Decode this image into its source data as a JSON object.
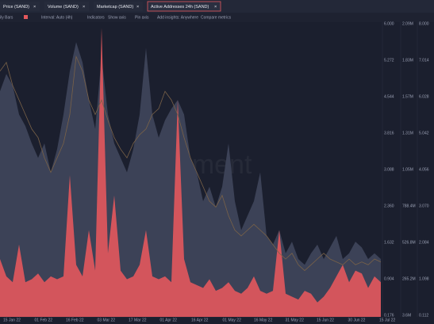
{
  "tabs": [
    "Price (SAND)",
    "Volume (SAND)",
    "Marketcap (SAND)",
    "Active Addresses 24h (SAND)"
  ],
  "toolbar": [
    "ily Bars",
    "Interval: Auto (4h)",
    "Indicators",
    "Show axis",
    "Pin axis",
    "Add insights: Anywhere",
    "Compare metrics"
  ],
  "watermark": "santiment",
  "x_labels": [
    "15 Jan 22",
    "01 Feb 22",
    "16 Feb 22",
    "03 Mar 22",
    "17 Mar 22",
    "01 Apr 22",
    "16 Apr 22",
    "01 May 22",
    "16 May 22",
    "31 May 22",
    "15 Jun 22",
    "30 Jun 22",
    "15 Jul 22"
  ],
  "right_axes": [
    [
      "6.000",
      "5.272",
      "4.544",
      "3.816",
      "3.088",
      "2.360",
      "1.632",
      "0.904",
      "0.176"
    ],
    [
      "2.09M",
      "1.83M",
      "1.57M",
      "1.31M",
      "1.05M",
      "788.4M",
      "526.8M",
      "265.2M",
      "3.6M"
    ],
    [
      "8.000",
      "7.014",
      "6.028",
      "5.042",
      "4.056",
      "3.070",
      "2.084",
      "1.098",
      "0.112"
    ]
  ],
  "ylim": [
    0,
    100
  ],
  "series": [
    {
      "name": "Volume (SAND)",
      "color": "#3c4257",
      "values": [
        78,
        84,
        80,
        70,
        66,
        60,
        55,
        60,
        50,
        58,
        70,
        85,
        95,
        88,
        75,
        65,
        90,
        70,
        60,
        55,
        50,
        58,
        70,
        93,
        70,
        62,
        68,
        72,
        75,
        70,
        55,
        50,
        40,
        45,
        38,
        45,
        60,
        40,
        30,
        35,
        40,
        50,
        28,
        25,
        30,
        22,
        26,
        20,
        18,
        22,
        25,
        20,
        24,
        28,
        20,
        22,
        26,
        24,
        20,
        22,
        20
      ]
    },
    {
      "name": "Active Addresses 24h (SAND)",
      "color": "#e3585d",
      "values": [
        20,
        14,
        12,
        25,
        12,
        13,
        15,
        12,
        14,
        13,
        14,
        49,
        18,
        14,
        30,
        16,
        100,
        22,
        42,
        16,
        13,
        14,
        18,
        30,
        14,
        13,
        14,
        12,
        75,
        20,
        12,
        11,
        10,
        13,
        9,
        10,
        12,
        9,
        8,
        10,
        14,
        9,
        8,
        9,
        30,
        8,
        7,
        6,
        9,
        8,
        5,
        7,
        10,
        14,
        18,
        12,
        16,
        15,
        10,
        14,
        12
      ]
    },
    {
      "name": "Price (SAND)",
      "color": "#7a6248",
      "values": [
        85,
        88,
        80,
        75,
        70,
        65,
        62,
        55,
        50,
        55,
        60,
        70,
        90,
        85,
        75,
        70,
        75,
        68,
        62,
        58,
        55,
        60,
        63,
        65,
        70,
        72,
        78,
        75,
        70,
        62,
        55,
        50,
        45,
        40,
        38,
        42,
        35,
        30,
        28,
        30,
        32,
        30,
        28,
        25,
        22,
        20,
        22,
        18,
        16,
        18,
        20,
        22,
        20,
        19,
        18,
        20,
        18,
        19,
        18,
        20,
        19
      ]
    }
  ]
}
